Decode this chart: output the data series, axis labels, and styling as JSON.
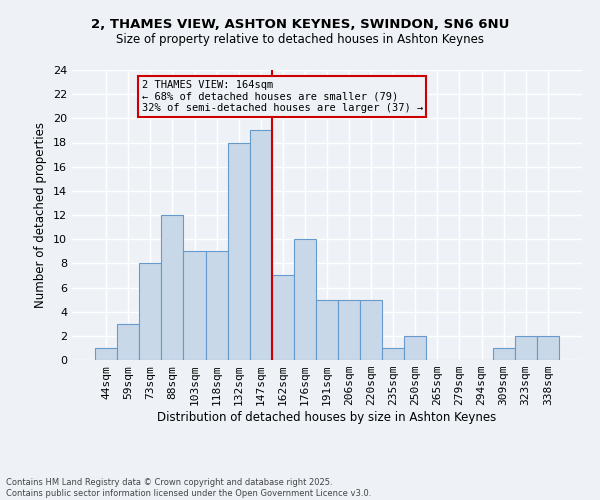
{
  "title1": "2, THAMES VIEW, ASHTON KEYNES, SWINDON, SN6 6NU",
  "title2": "Size of property relative to detached houses in Ashton Keynes",
  "xlabel": "Distribution of detached houses by size in Ashton Keynes",
  "ylabel": "Number of detached properties",
  "categories": [
    "44sqm",
    "59sqm",
    "73sqm",
    "88sqm",
    "103sqm",
    "118sqm",
    "132sqm",
    "147sqm",
    "162sqm",
    "176sqm",
    "191sqm",
    "206sqm",
    "220sqm",
    "235sqm",
    "250sqm",
    "265sqm",
    "279sqm",
    "294sqm",
    "309sqm",
    "323sqm",
    "338sqm"
  ],
  "values": [
    1,
    3,
    8,
    12,
    9,
    9,
    18,
    19,
    7,
    10,
    5,
    5,
    5,
    1,
    2,
    0,
    0,
    0,
    1,
    2,
    2
  ],
  "bar_color": "#c8d8e8",
  "bar_edge_color": "#6699cc",
  "vline_color": "#cc0000",
  "annotation_text": "2 THAMES VIEW: 164sqm\n← 68% of detached houses are smaller (79)\n32% of semi-detached houses are larger (37) →",
  "ylim": [
    0,
    24
  ],
  "yticks": [
    0,
    2,
    4,
    6,
    8,
    10,
    12,
    14,
    16,
    18,
    20,
    22,
    24
  ],
  "background_color": "#eef2f7",
  "grid_color": "#ffffff",
  "footer": "Contains HM Land Registry data © Crown copyright and database right 2025.\nContains public sector information licensed under the Open Government Licence v3.0."
}
